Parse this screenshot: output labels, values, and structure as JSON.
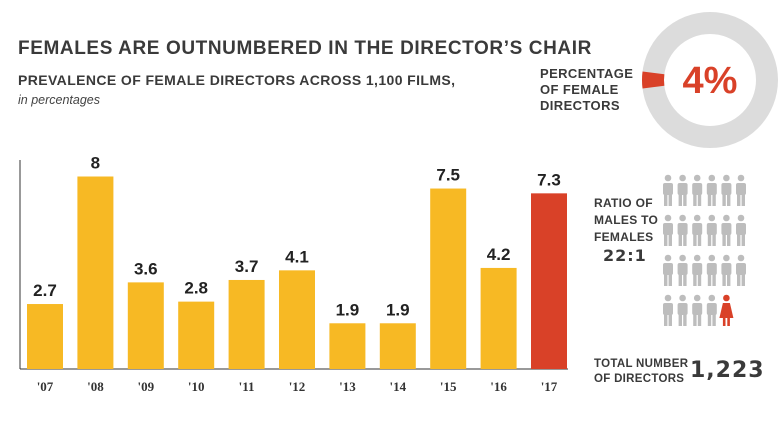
{
  "title": "FEMALES ARE OUTNUMBERED IN THE DIRECTOR’S CHAIR",
  "subtitle": "PREVALENCE OF FEMALE DIRECTORS ACROSS 1,100 FILMS,",
  "subnote": "in percentages",
  "colors": {
    "bar": "#F7B924",
    "highlight": "#D94128",
    "donut_track": "#DCDCDC",
    "male": "#BDBDBD",
    "female": "#D94128",
    "text": "#3A3A3A"
  },
  "chart_data": {
    "type": "bar",
    "categories": [
      "'07",
      "'08",
      "'09",
      "'10",
      "'11",
      "'12",
      "'13",
      "'14",
      "'15",
      "'16",
      "'17"
    ],
    "values": [
      2.7,
      8,
      3.6,
      2.8,
      3.7,
      4.1,
      1.9,
      1.9,
      7.5,
      4.2,
      7.3
    ],
    "value_labels": [
      "2.7",
      "8",
      "3.6",
      "2.8",
      "3.7",
      "4.1",
      "1.9",
      "1.9",
      "7.5",
      "4.2",
      "7.3"
    ],
    "highlight_index": 10,
    "ylim": [
      0,
      9.6
    ],
    "grid": false
  },
  "percentage": {
    "label": "PERCENTAGE OF FEMALE DIRECTORS",
    "value_text": "4%",
    "value": 4
  },
  "ratio": {
    "label": "RATIO OF MALES TO FEMALES",
    "value_text": "22:1",
    "grid_cols": 6,
    "grid_rows": 4,
    "female_count": 1
  },
  "total": {
    "label": "TOTAL NUMBER OF DIRECTORS",
    "value_text": "1,223"
  }
}
